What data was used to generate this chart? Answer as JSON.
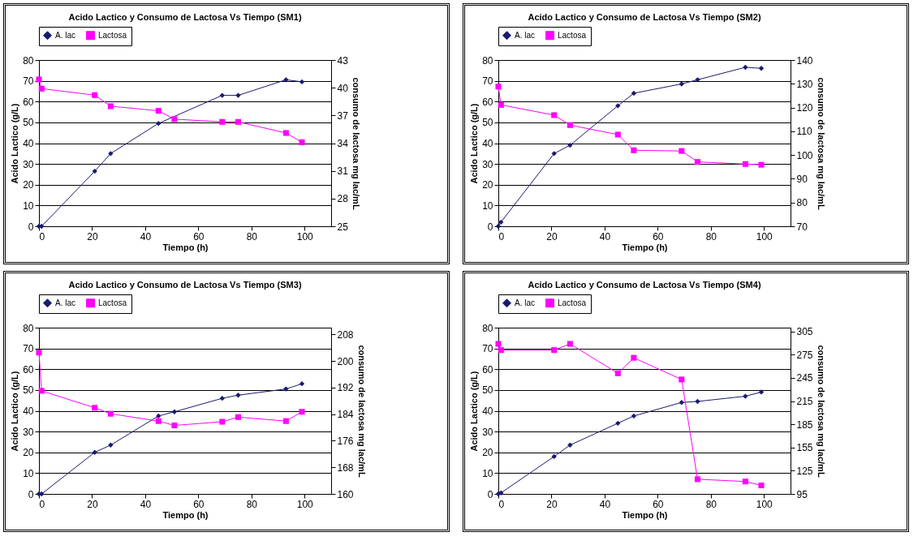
{
  "chart_data": [
    {
      "type": "line",
      "title": "Acido Lactico y Consumo de Lactosa Vs Tiempo  (SM1)",
      "xlabel": "Tiempo (h)",
      "ylabel": "Acido Lactico  (g/L)",
      "y2label": "consumo de lactosa mg lac/mL",
      "x": [
        0,
        1,
        21,
        27,
        45,
        51,
        69,
        75,
        93,
        99
      ],
      "xlim": [
        0,
        110
      ],
      "xticks": [
        0,
        20,
        40,
        60,
        80,
        100
      ],
      "ylim": [
        0,
        80
      ],
      "yticks": [
        0,
        10,
        20,
        30,
        40,
        50,
        60,
        70,
        80
      ],
      "y2lim": [
        25,
        43
      ],
      "y2ticks": [
        25,
        28,
        31,
        34,
        37,
        40,
        43
      ],
      "grid": "y",
      "legend": "top",
      "series": [
        {
          "name": "A. lac",
          "color": "#1a1a6e",
          "marker": "diamond",
          "values": [
            0,
            0,
            26.5,
            35,
            49.5,
            null,
            63,
            63,
            70.5,
            69.5
          ]
        },
        {
          "name": "Lactosa",
          "color": "#ff00ff",
          "marker": "square",
          "axis": "y2",
          "values": [
            40.9,
            39.9,
            39.2,
            38.0,
            37.5,
            36.6,
            36.3,
            36.3,
            35.1,
            34.1
          ]
        }
      ]
    },
    {
      "type": "line",
      "title": "Acido Lactico y Consumo de Lactosa Vs Tiempo  (SM2)",
      "xlabel": "Tiempo (h)",
      "ylabel": "Acido Lactico  (g/L)",
      "y2label": "consumo de lactosa mg lac/mL",
      "x": [
        0,
        1,
        21,
        27,
        45,
        51,
        69,
        75,
        93,
        99
      ],
      "xlim": [
        0,
        110
      ],
      "xticks": [
        0,
        20,
        40,
        60,
        80,
        100
      ],
      "ylim": [
        0,
        80
      ],
      "yticks": [
        0,
        10,
        20,
        30,
        40,
        50,
        60,
        70,
        80
      ],
      "y2lim": [
        70,
        140
      ],
      "y2ticks": [
        70,
        80,
        90,
        100,
        110,
        120,
        130,
        140
      ],
      "grid": "y",
      "legend": "top",
      "series": [
        {
          "name": "A. lac",
          "color": "#1a1a6e",
          "marker": "diamond",
          "values": [
            0,
            2,
            35,
            39,
            58,
            64,
            68.5,
            70.5,
            76.5,
            76
          ]
        },
        {
          "name": "Lactosa",
          "color": "#ff00ff",
          "marker": "square",
          "axis": "y2",
          "values": [
            128.8,
            121.1,
            116.8,
            112.6,
            108.6,
            102.0,
            101.7,
            97.1,
            96.2,
            95.9
          ]
        }
      ]
    },
    {
      "type": "line",
      "title": "Acido Lactico y Consumo de Lactosa Vs Tiempo  (SM3)",
      "xlabel": "Tiempo (h)",
      "ylabel": "Acido Lactico  (g/L)",
      "y2label": "consumo de lactosa mg lac/mL",
      "x": [
        0,
        1,
        21,
        27,
        45,
        51,
        69,
        75,
        93,
        99
      ],
      "xlim": [
        0,
        110
      ],
      "xticks": [
        0,
        20,
        40,
        60,
        80,
        100
      ],
      "ylim": [
        0,
        80
      ],
      "yticks": [
        0,
        10,
        20,
        30,
        40,
        50,
        60,
        70,
        80
      ],
      "y2lim": [
        160,
        210
      ],
      "y2ticks": [
        160,
        168,
        176,
        184,
        192,
        200,
        208
      ],
      "grid": "y",
      "legend": "top",
      "series": [
        {
          "name": "A. lac",
          "color": "#1a1a6e",
          "marker": "diamond",
          "values": [
            0,
            0,
            20,
            23.5,
            37.5,
            39.5,
            46,
            47.5,
            50.5,
            53
          ]
        },
        {
          "name": "Lactosa",
          "color": "#ff00ff",
          "marker": "square",
          "axis": "y2",
          "values": [
            202.5,
            191.0,
            185.9,
            184.1,
            181.9,
            180.6,
            181.7,
            183.1,
            181.9,
            184.7
          ]
        }
      ]
    },
    {
      "type": "line",
      "title": "Acido Lactico y Consumo de Lactosa Vs Tiempo  (SM4)",
      "xlabel": "Tiempo (h)",
      "ylabel": "Acido Lactico  (g/L)",
      "y2label": "consumo de lactosa mg lac/mL",
      "x": [
        0,
        1,
        21,
        27,
        45,
        51,
        69,
        75,
        93,
        99
      ],
      "xlim": [
        0,
        110
      ],
      "xticks": [
        0,
        20,
        40,
        60,
        80,
        100
      ],
      "ylim": [
        0,
        80
      ],
      "yticks": [
        0,
        10,
        20,
        30,
        40,
        50,
        60,
        70,
        80
      ],
      "y2lim": [
        95,
        310
      ],
      "y2ticks": [
        95,
        125,
        155,
        185,
        215,
        245,
        275,
        305
      ],
      "grid": "y",
      "legend": "top",
      "series": [
        {
          "name": "A. lac",
          "color": "#1a1a6e",
          "marker": "diamond",
          "values": [
            0,
            0.5,
            18,
            23.5,
            34,
            37.5,
            44,
            44.5,
            47,
            49
          ]
        },
        {
          "name": "Lactosa",
          "color": "#ff00ff",
          "marker": "square",
          "axis": "y2",
          "values": [
            289,
            281,
            281,
            289,
            251,
            271,
            243,
            114,
            111,
            106
          ]
        }
      ]
    }
  ]
}
